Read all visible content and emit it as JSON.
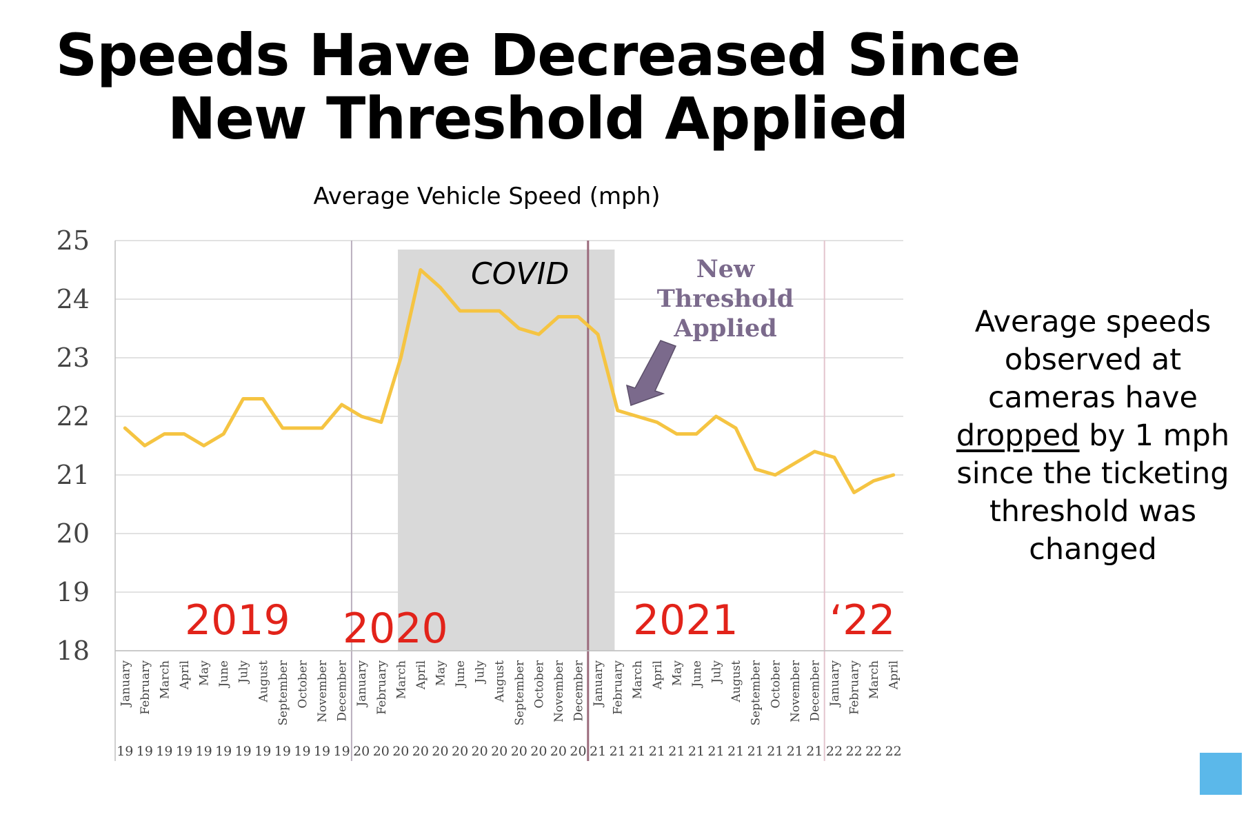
{
  "slide": {
    "title_line1": "Speeds Have Decreased Since",
    "title_line2": "New Threshold Applied",
    "side_text_1": "Average speeds observed at cameras have",
    "side_text_underlined": "dropped",
    "side_text_2": "by 1 mph since the ticketing threshold was changed"
  },
  "colors": {
    "line": "#f5c442",
    "year_labels": "#e2231a",
    "covid_band": "#d9d9d9",
    "threshold_annotation": "#7b6a8c",
    "corner_square": "#5bb8ea"
  },
  "chart_data": {
    "type": "line",
    "title": "Average Vehicle Speed (mph)",
    "ylim": [
      18,
      25
    ],
    "yticks": [
      25,
      24,
      23,
      22,
      21,
      20,
      19,
      18
    ],
    "grid": "horizontal",
    "months": [
      "January",
      "February",
      "March",
      "April",
      "May",
      "June",
      "July",
      "August",
      "September",
      "October",
      "November",
      "December",
      "January",
      "February",
      "March",
      "April",
      "May",
      "June",
      "July",
      "August",
      "September",
      "October",
      "November",
      "December",
      "January",
      "February",
      "March",
      "April",
      "May",
      "June",
      "July",
      "August",
      "September",
      "October",
      "November",
      "December",
      "January",
      "February",
      "March",
      "April"
    ],
    "years": [
      "19",
      "19",
      "19",
      "19",
      "19",
      "19",
      "19",
      "19",
      "19",
      "19",
      "19",
      "19",
      "20",
      "20",
      "20",
      "20",
      "20",
      "20",
      "20",
      "20",
      "20",
      "20",
      "20",
      "20",
      "21",
      "21",
      "21",
      "21",
      "21",
      "21",
      "21",
      "21",
      "21",
      "21",
      "21",
      "21",
      "22",
      "22",
      "22",
      "22"
    ],
    "values": [
      21.8,
      21.5,
      21.7,
      21.7,
      21.5,
      21.7,
      22.3,
      22.3,
      21.8,
      21.8,
      21.8,
      22.2,
      22.0,
      21.9,
      23.0,
      24.5,
      24.2,
      23.8,
      23.8,
      23.8,
      23.5,
      23.4,
      23.7,
      23.7,
      23.4,
      22.1,
      22.0,
      21.9,
      21.7,
      21.7,
      22.0,
      21.8,
      21.1,
      21.0,
      21.2,
      21.4,
      21.3,
      20.7,
      20.9,
      21.0
    ],
    "year_labels": [
      "2019",
      "2020",
      "2021",
      "‘22"
    ],
    "year_separators_after_index": [
      11,
      23,
      35
    ],
    "annotations": {
      "covid": {
        "label": "COVID",
        "start_index": 14,
        "end_index": 25
      },
      "threshold": {
        "lines": [
          "New",
          "Threshold",
          "Applied"
        ],
        "arrow_to_index": 26
      }
    }
  }
}
